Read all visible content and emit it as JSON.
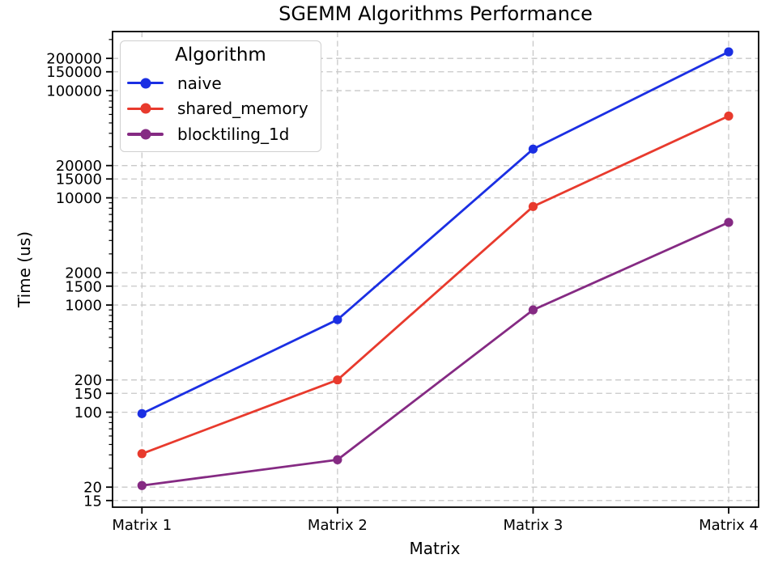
{
  "title": "SGEMM Algorithms Performance",
  "xlabel": "Matrix",
  "ylabel": "Time (us)",
  "legend": {
    "title": "Algorithm",
    "entries": [
      {
        "label": "naive",
        "color": "#1b2fe3"
      },
      {
        "label": "shared_memory",
        "color": "#e83a2d"
      },
      {
        "label": "blocktiling_1d",
        "color": "#852a83"
      }
    ]
  },
  "chart_data": {
    "type": "line",
    "title": "SGEMM Algorithms Performance",
    "xlabel": "Matrix",
    "ylabel": "Time (us)",
    "categories": [
      "Matrix 1",
      "Matrix 2",
      "Matrix 3",
      "Matrix 4"
    ],
    "series": [
      {
        "name": "naive",
        "color": "#1b2fe3",
        "values": [
          97,
          730,
          28500,
          230000
        ]
      },
      {
        "name": "shared_memory",
        "color": "#e83a2d",
        "values": [
          41,
          200,
          8300,
          58000
        ]
      },
      {
        "name": "blocktiling_1d",
        "color": "#852a83",
        "values": [
          20.7,
          36,
          900,
          5900
        ]
      }
    ],
    "yscale": "log",
    "ylim": [
      13,
      356000
    ],
    "yticks": [
      15,
      20,
      100,
      150,
      200,
      1000,
      1500,
      2000,
      10000,
      15000,
      20000,
      100000,
      150000,
      200000
    ],
    "grid": "both-major-dashed",
    "legend_position": "upper left"
  },
  "colors": {
    "background": "#ffffff",
    "grid": "#c8c8c8",
    "spine": "#000000",
    "text": "#000000",
    "legend_border": "#cfcfcf"
  }
}
